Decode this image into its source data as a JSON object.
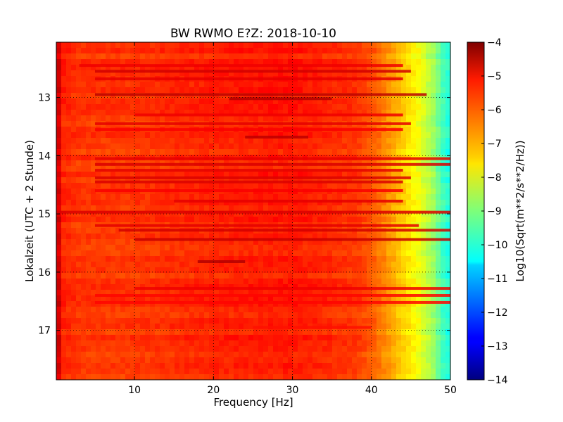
{
  "chart_data": {
    "type": "heatmap",
    "title": "BW RWMO E?Z: 2018-10-10",
    "xlabel": "Frequency [Hz]",
    "ylabel": "Lokalzeit (UTC + 2 Stunde)",
    "xlim": [
      0.1,
      50
    ],
    "ylim": [
      12.05,
      17.85
    ],
    "y_axis_inverted": true,
    "x_ticks": [
      10,
      20,
      30,
      40,
      50
    ],
    "x_tick_labels": [
      "10",
      "20",
      "30",
      "40",
      "50"
    ],
    "y_ticks": [
      13,
      14,
      15,
      16,
      17
    ],
    "y_tick_labels": [
      "13",
      "14",
      "15",
      "16",
      "17"
    ],
    "grid": true,
    "colormap": "jet",
    "colorbar": {
      "label": "Log10(Sqrt(m**2/s**2/Hz))",
      "range": [
        -14,
        -4
      ],
      "ticks": [
        -4,
        -5,
        -6,
        -7,
        -8,
        -9,
        -10,
        -11,
        -12,
        -13,
        -14
      ],
      "tick_labels": [
        "−4",
        "−5",
        "−6",
        "−7",
        "−8",
        "−9",
        "−10",
        "−11",
        "−12",
        "−13",
        "−14"
      ]
    },
    "frequency_profile": {
      "frequency_hz": [
        0.1,
        1,
        3,
        10,
        20,
        30,
        38,
        40,
        42,
        44,
        46,
        48,
        49,
        50
      ],
      "log_amplitude": [
        -4.5,
        -5.6,
        -5.8,
        -5.8,
        -5.6,
        -5.5,
        -5.8,
        -6.1,
        -6.7,
        -7.3,
        -7.9,
        -8.8,
        -9.6,
        -10.0
      ]
    },
    "bands": [
      {
        "time": 12.45,
        "f_min": 3,
        "f_max": 44,
        "level": -5.1
      },
      {
        "time": 12.55,
        "f_min": 5,
        "f_max": 45,
        "level": -4.8
      },
      {
        "time": 12.68,
        "f_min": 5,
        "f_max": 44,
        "level": -5.0
      },
      {
        "time": 12.95,
        "f_min": 5,
        "f_max": 47,
        "level": -4.6
      },
      {
        "time": 13.02,
        "f_min": 22,
        "f_max": 35,
        "level": -4.5
      },
      {
        "time": 13.3,
        "f_min": 10,
        "f_max": 44,
        "level": -5.1
      },
      {
        "time": 13.45,
        "f_min": 5,
        "f_max": 45,
        "level": -5.0
      },
      {
        "time": 13.55,
        "f_min": 5,
        "f_max": 44,
        "level": -5.2
      },
      {
        "time": 13.68,
        "f_min": 24,
        "f_max": 32,
        "level": -4.6
      },
      {
        "time": 14.05,
        "f_min": 5,
        "f_max": 50,
        "level": -5.0
      },
      {
        "time": 14.15,
        "f_min": 5,
        "f_max": 50,
        "level": -4.9
      },
      {
        "time": 14.25,
        "f_min": 5,
        "f_max": 44,
        "level": -5.0
      },
      {
        "time": 14.38,
        "f_min": 5,
        "f_max": 45,
        "level": -4.9
      },
      {
        "time": 14.45,
        "f_min": 5,
        "f_max": 44,
        "level": -4.9
      },
      {
        "time": 14.6,
        "f_min": 5,
        "f_max": 44,
        "level": -5.2
      },
      {
        "time": 14.78,
        "f_min": 15,
        "f_max": 44,
        "level": -5.0
      },
      {
        "time": 14.97,
        "f_min": 0,
        "f_max": 50,
        "level": -4.9
      },
      {
        "time": 15.2,
        "f_min": 5,
        "f_max": 46,
        "level": -5.0
      },
      {
        "time": 15.28,
        "f_min": 8,
        "f_max": 50,
        "level": -4.8
      },
      {
        "time": 15.44,
        "f_min": 10,
        "f_max": 50,
        "level": -4.7
      },
      {
        "time": 15.82,
        "f_min": 18,
        "f_max": 24,
        "level": -4.5
      },
      {
        "time": 16.28,
        "f_min": 10,
        "f_max": 50,
        "level": -5.1
      },
      {
        "time": 16.4,
        "f_min": 5,
        "f_max": 50,
        "level": -5.3
      },
      {
        "time": 16.52,
        "f_min": 5,
        "f_max": 50,
        "level": -5.3
      },
      {
        "time": 16.95,
        "f_min": 25,
        "f_max": 40,
        "level": -5.4
      }
    ]
  }
}
